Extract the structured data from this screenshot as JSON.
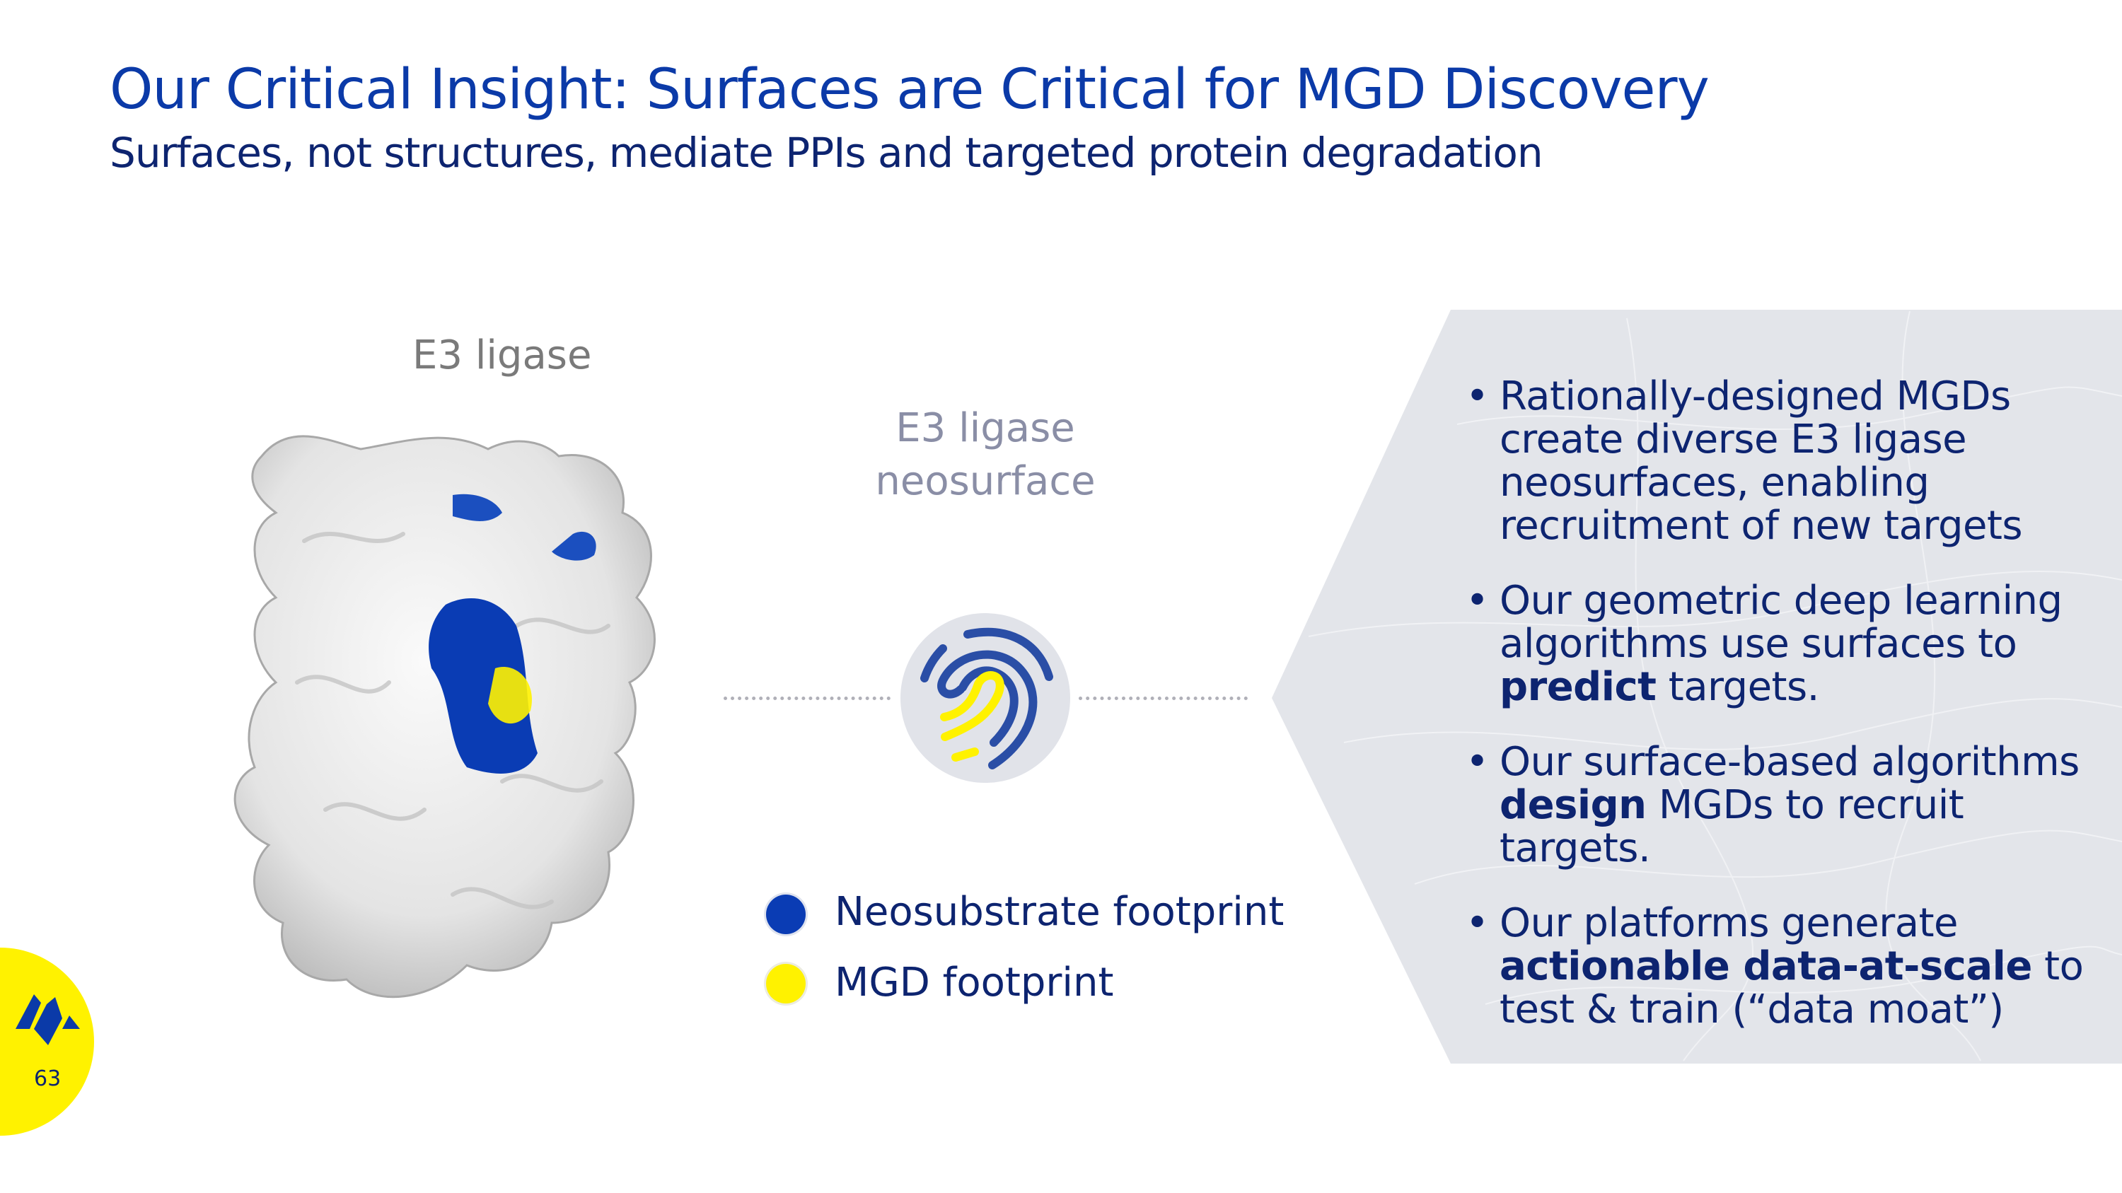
{
  "header": {
    "title": "Our Critical Insight: Surfaces are Critical for MGD Discovery",
    "subtitle": "Surfaces, not structures, mediate PPIs and targeted protein degradation"
  },
  "figure": {
    "protein_label": "E3 ligase",
    "neosurface_label_line1": "E3 ligase",
    "neosurface_label_line2": "neosurface",
    "fingerprint_icon": "fingerprint-icon",
    "legend": [
      {
        "label": "Neosubstrate footprint",
        "color": "#0a3cb4"
      },
      {
        "label": "MGD footprint",
        "color": "#fff200"
      }
    ]
  },
  "bullets": [
    {
      "pre": "Rationally-designed MGDs create diverse E3 ligase neosurfaces, enabling recruitment of new targets",
      "bold": "",
      "post": ""
    },
    {
      "pre": "Our geometric deep learning algorithms use surfaces to ",
      "bold": "predict",
      "post": " targets."
    },
    {
      "pre": "Our surface-based algorithms ",
      "bold": "design",
      "post": " MGDs to recruit targets."
    },
    {
      "pre": "Our platforms generate ",
      "bold": "actionable data-at-scale",
      "post": " to test & train (“data moat”)"
    }
  ],
  "footer": {
    "page_number": "63",
    "logo": "company-logo"
  },
  "colors": {
    "title": "#0b3aa8",
    "text": "#0d2470",
    "panel": "#e3e5ea",
    "accent_yellow": "#fff200",
    "accent_blue": "#0a3cb4"
  }
}
